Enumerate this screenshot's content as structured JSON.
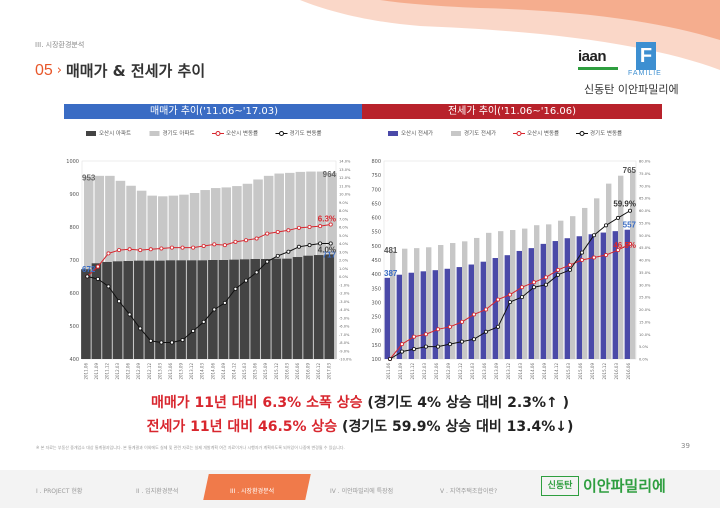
{
  "header": {
    "section_label": "III. 시장환경분석",
    "title_number": "05",
    "title_chevron": "›",
    "title_text": "매매가 & 전세가 추이"
  },
  "logo": {
    "wordmark": "iaan",
    "badge_letter": "F",
    "badge_word": "FAMILIE",
    "subtitle": "신동탄 이안파밀리에"
  },
  "colors": {
    "accent_orange": "#e8572a",
    "left_header_blue": "#3a6cc4",
    "right_header_red": "#b8222b",
    "bar_osan_dark": "#444444",
    "bar_gyeonggi_light": "#c7c7c7",
    "bar_osan_jeonse_blue": "#4a49a8",
    "line_red": "#d8262e",
    "line_black": "#111111",
    "brand_green": "#2e9e3f"
  },
  "chart_data": [
    {
      "type": "bar",
      "title": "매매가 추이('11.06~'17.03)",
      "legend_position": "top",
      "grid": false,
      "categories": [
        "2011.06",
        "2011.09",
        "2011.12",
        "2012.03",
        "2012.06",
        "2012.09",
        "2012.12",
        "2013.03",
        "2013.06",
        "2013.09",
        "2013.12",
        "2014.03",
        "2014.06",
        "2014.09",
        "2014.12",
        "2015.03",
        "2015.06",
        "2015.09",
        "2015.12",
        "2016.03",
        "2016.06",
        "2016.09",
        "2016.12",
        "2017.03"
      ],
      "left_axis": {
        "ylim": [
          400,
          1000
        ],
        "ticks": [
          "400",
          "500",
          "600",
          "700",
          "800",
          "900",
          "1000"
        ]
      },
      "right_axis": {
        "ylim": [
          -10,
          14
        ],
        "ticks": [
          "-10.0%",
          "-9.0%",
          "-8.0%",
          "-7.0%",
          "-6.0%",
          "-5.0%",
          "-4.0%",
          "-3.0%",
          "-2.0%",
          "-1.0%",
          "0.0%",
          "1.0%",
          "2.0%",
          "3.0%",
          "4.0%",
          "5.0%",
          "6.0%",
          "7.0%",
          "8.0%",
          "9.0%",
          "10.0%",
          "11.0%",
          "12.0%",
          "13.0%",
          "14.0%"
        ]
      },
      "series": [
        {
          "name": "오산시 아파트",
          "kind": "bar",
          "axis": "left",
          "values": [
            672,
            690,
            694,
            696,
            697,
            698,
            698,
            698,
            699,
            699,
            699,
            699,
            700,
            700,
            701,
            702,
            703,
            703,
            704,
            704,
            709,
            713,
            715,
            717
          ]
        },
        {
          "name": "경기도 아파트",
          "kind": "bar",
          "axis": "left",
          "values": [
            953,
            955,
            955,
            940,
            925,
            910,
            895,
            893,
            895,
            898,
            903,
            912,
            918,
            920,
            924,
            931,
            944,
            955,
            962,
            964,
            967,
            968,
            968,
            964
          ]
        },
        {
          "name": "오산시 변동률",
          "kind": "line",
          "axis": "right",
          "values": [
            0,
            1.2,
            2.8,
            3.2,
            3.3,
            3.2,
            3.3,
            3.4,
            3.5,
            3.5,
            3.5,
            3.7,
            3.9,
            3.8,
            4.2,
            4.4,
            4.6,
            5.2,
            5.4,
            5.6,
            5.9,
            6.0,
            6.1,
            6.3
          ]
        },
        {
          "name": "경기도 변동률",
          "kind": "line",
          "axis": "right",
          "values": [
            0,
            -0.3,
            -1.2,
            -3.0,
            -4.6,
            -6.3,
            -7.8,
            -8.0,
            -8.0,
            -7.7,
            -6.6,
            -5.5,
            -4.0,
            -3.2,
            -1.5,
            -0.5,
            0.5,
            1.8,
            2.5,
            3.0,
            3.6,
            3.8,
            4.0,
            4.0
          ]
        }
      ],
      "data_labels": [
        {
          "series": "경기도 아파트",
          "index": 0,
          "text": "953"
        },
        {
          "series": "경기도 아파트",
          "index": 23,
          "text": "964"
        },
        {
          "series": "오산시 아파트",
          "index": 0,
          "text": "672"
        },
        {
          "series": "오산시 아파트",
          "index": 23,
          "text": "717"
        },
        {
          "series": "오산시 변동률",
          "index": 23,
          "text": "6.3%"
        },
        {
          "series": "경기도 변동률",
          "index": 23,
          "text": "4.0%"
        }
      ]
    },
    {
      "type": "bar",
      "title": "전세가 추이('11.06~'16.06)",
      "legend_position": "top",
      "grid": false,
      "categories": [
        "2011.06",
        "2011.09",
        "2011.12",
        "2012.03",
        "2012.06",
        "2012.09",
        "2012.12",
        "2013.03",
        "2013.06",
        "2013.09",
        "2013.12",
        "2014.03",
        "2014.06",
        "2014.09",
        "2014.12",
        "2015.03",
        "2015.06",
        "2015.09",
        "2015.12",
        "2016.03",
        "2016.06"
      ],
      "left_axis": {
        "ylim": [
          100,
          800
        ],
        "ticks": [
          "100",
          "150",
          "200",
          "250",
          "300",
          "350",
          "400",
          "450",
          "500",
          "550",
          "600",
          "650",
          "700",
          "750",
          "800"
        ]
      },
      "right_axis": {
        "ylim": [
          0,
          80
        ],
        "ticks": [
          "0.0%",
          "5.0%",
          "10.0%",
          "15.0%",
          "20.0%",
          "25.0%",
          "30.0%",
          "35.0%",
          "40.0%",
          "45.0%",
          "50.0%",
          "55.0%",
          "60.0%",
          "65.0%",
          "70.0%",
          "75.0%",
          "80.0%"
        ]
      },
      "series": [
        {
          "name": "오산시 전세가",
          "kind": "bar",
          "axis": "left",
          "values": [
            387,
            398,
            405,
            410,
            414,
            419,
            425,
            434,
            444,
            457,
            467,
            482,
            492,
            507,
            517,
            527,
            534,
            541,
            547,
            552,
            557
          ]
        },
        {
          "name": "경기도 전세가",
          "kind": "bar",
          "axis": "left",
          "values": [
            481,
            490,
            492,
            495,
            503,
            510,
            516,
            528,
            546,
            552,
            556,
            561,
            573,
            576,
            589,
            605,
            634,
            668,
            720,
            748,
            765
          ]
        },
        {
          "name": "오산시 변동률",
          "kind": "line",
          "axis": "right",
          "values": [
            0,
            6,
            9,
            10,
            12,
            13,
            15,
            18,
            20,
            24,
            26,
            29,
            31,
            33,
            36,
            38,
            40,
            41,
            42,
            44,
            46.5
          ]
        },
        {
          "name": "경기도 변동률",
          "kind": "line",
          "axis": "right",
          "values": [
            0,
            3,
            4,
            5,
            5,
            6,
            7,
            8,
            11,
            13,
            23,
            25,
            29,
            30,
            34,
            36,
            43,
            50,
            54,
            57,
            59.9
          ]
        }
      ],
      "data_labels": [
        {
          "series": "경기도 전세가",
          "index": 0,
          "text": "481"
        },
        {
          "series": "경기도 전세가",
          "index": 20,
          "text": "765"
        },
        {
          "series": "오산시 전세가",
          "index": 0,
          "text": "387"
        },
        {
          "series": "오산시 전세가",
          "index": 20,
          "text": "557"
        },
        {
          "series": "경기도 변동률",
          "index": 20,
          "text": "59.9%"
        },
        {
          "series": "오산시 변동률",
          "index": 20,
          "text": "46.5%"
        }
      ]
    }
  ],
  "summary": {
    "line1_red": "매매가 11년 대비 6.3% 소폭 상승",
    "line1_black": " (경기도 4% 상승 대비 2.3%↑ )",
    "line2_red": "전세가 11년 대비 46.5% 상승",
    "line2_black": " (경기도 59.9% 상승 대비 13.4%↓)"
  },
  "footnote": "※ 본 자료는 부동산 중개업소 대상 통계결과입니다. 본 통계결과 이외에도 실제 및 관련 자료는 실제 개발계획 여건 자료이거나 시행자가 계획하도록 되어있어 나중에 변경될 수 있습니다.",
  "page_number": "39",
  "footer": {
    "nav": [
      "I . PROJECT 현황",
      "II . 입지환경분석",
      "III . 시장환경분석",
      "IV . 이안파밀리에 특장점",
      "V . 지역주택조합이란?"
    ],
    "active_index": 2,
    "logo_box": "신동탄",
    "logo_text": "이안파밀리에"
  }
}
